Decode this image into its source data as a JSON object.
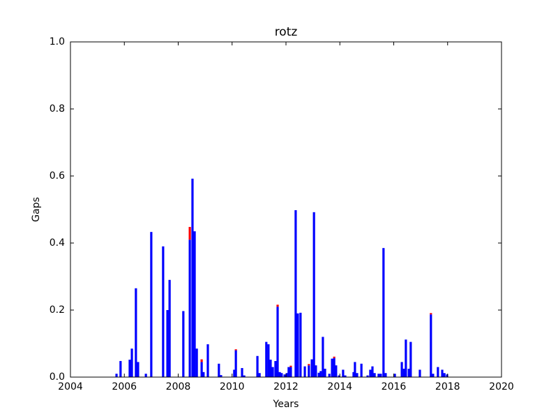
{
  "chart_data": {
    "type": "bar",
    "title": "rotz",
    "x_label": "Years",
    "y_label": "Gaps",
    "xlim": [
      2004,
      2020
    ],
    "xticks": [
      2004,
      2006,
      2008,
      2010,
      2012,
      2014,
      2016,
      2018,
      2020
    ],
    "ylim": [
      0,
      1
    ],
    "yticks": [
      {
        "value": 0,
        "label": "0.0"
      },
      0.2,
      0.4,
      0.6,
      0.8,
      {
        "value": 1,
        "label": "1.0"
      }
    ],
    "stacked": true,
    "series": [
      {
        "color": "#0000ff",
        "x": [
          2005.71,
          2005.86,
          2006.2,
          2006.28,
          2006.43,
          2006.51,
          2006.8,
          2007.0,
          2007.44,
          2007.6,
          2007.68,
          2008.19,
          2008.43,
          2008.53,
          2008.61,
          2008.69,
          2008.87,
          2008.94,
          2009.1,
          2009.51,
          2009.59,
          2010.08,
          2010.14,
          2010.37,
          2010.45,
          2010.94,
          2011.02,
          2011.27,
          2011.35,
          2011.43,
          2011.51,
          2011.61,
          2011.69,
          2011.77,
          2011.84,
          2011.95,
          2012.03,
          2012.1,
          2012.18,
          2012.36,
          2012.44,
          2012.54,
          2012.7,
          2012.85,
          2012.96,
          2013.04,
          2013.11,
          2013.22,
          2013.29,
          2013.37,
          2013.45,
          2013.61,
          2013.71,
          2013.79,
          2013.86,
          2013.97,
          2014.12,
          2014.2,
          2014.51,
          2014.56,
          2014.64,
          2014.8,
          2015.03,
          2015.13,
          2015.21,
          2015.29,
          2015.44,
          2015.52,
          2015.62,
          2015.7,
          2016.04,
          2016.3,
          2016.38,
          2016.45,
          2016.56,
          2016.63,
          2016.97,
          2017.38,
          2017.46,
          2017.64,
          2017.8,
          2017.88,
          2017.98
        ],
        "values": [
          0.01,
          0.048,
          0.052,
          0.085,
          0.265,
          0.045,
          0.01,
          0.433,
          0.39,
          0.2,
          0.29,
          0.197,
          0.41,
          0.592,
          0.435,
          0.085,
          0.045,
          0.015,
          0.098,
          0.04,
          0.006,
          0.022,
          0.08,
          0.027,
          0.005,
          0.063,
          0.012,
          0.105,
          0.098,
          0.052,
          0.03,
          0.048,
          0.21,
          0.015,
          0.012,
          0.008,
          0.012,
          0.03,
          0.03,
          0.498,
          0.19,
          0.192,
          0.032,
          0.035,
          0.053,
          0.492,
          0.035,
          0.013,
          0.018,
          0.12,
          0.025,
          0.01,
          0.055,
          0.057,
          0.035,
          0.005,
          0.022,
          0.005,
          0.015,
          0.045,
          0.012,
          0.04,
          0.005,
          0.022,
          0.032,
          0.012,
          0.01,
          0.01,
          0.385,
          0.012,
          0.01,
          0.045,
          0.025,
          0.112,
          0.025,
          0.105,
          0.022,
          0.187,
          0.01,
          0.03,
          0.022,
          0.012,
          0.008
        ]
      },
      {
        "color": "#ff0000",
        "x": [
          2008.43,
          2008.87,
          2010.14,
          2011.69,
          2012.18,
          2012.85,
          2013.79,
          2017.38
        ],
        "values": [
          0.038,
          0.008,
          0.003,
          0.006,
          0.004,
          0.004,
          0.004,
          0.004
        ]
      }
    ]
  }
}
